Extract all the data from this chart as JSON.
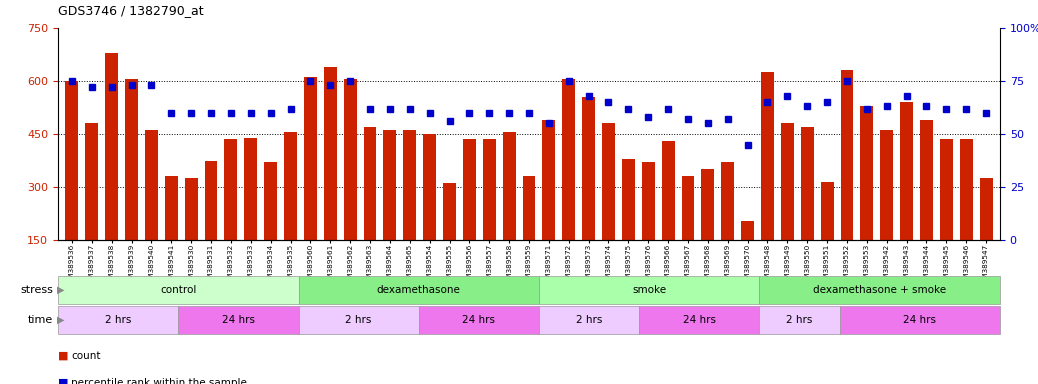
{
  "title": "GDS3746 / 1382790_at",
  "samples": [
    "GSM389536",
    "GSM389537",
    "GSM389538",
    "GSM389539",
    "GSM389540",
    "GSM389541",
    "GSM389530",
    "GSM389531",
    "GSM389532",
    "GSM389533",
    "GSM389534",
    "GSM389535",
    "GSM389560",
    "GSM389561",
    "GSM389562",
    "GSM389563",
    "GSM389564",
    "GSM389565",
    "GSM389554",
    "GSM389555",
    "GSM389556",
    "GSM389557",
    "GSM389558",
    "GSM389559",
    "GSM389571",
    "GSM389572",
    "GSM389573",
    "GSM389574",
    "GSM389575",
    "GSM389576",
    "GSM389566",
    "GSM389567",
    "GSM389568",
    "GSM389569",
    "GSM389570",
    "GSM389548",
    "GSM389549",
    "GSM389550",
    "GSM389551",
    "GSM389552",
    "GSM389553",
    "GSM389542",
    "GSM389543",
    "GSM389544",
    "GSM389545",
    "GSM389546",
    "GSM389547"
  ],
  "counts": [
    600,
    480,
    680,
    605,
    460,
    330,
    325,
    375,
    435,
    440,
    370,
    455,
    610,
    640,
    605,
    470,
    460,
    460,
    450,
    310,
    435,
    435,
    455,
    330,
    490,
    605,
    555,
    480,
    380,
    370,
    430,
    330,
    350,
    370,
    205,
    625,
    480,
    470,
    315,
    630,
    530,
    460,
    540,
    490,
    435,
    435,
    325
  ],
  "percentiles": [
    75,
    72,
    72,
    73,
    73,
    60,
    60,
    60,
    60,
    60,
    60,
    62,
    75,
    73,
    75,
    62,
    62,
    62,
    60,
    56,
    60,
    60,
    60,
    60,
    55,
    75,
    68,
    65,
    62,
    58,
    62,
    57,
    55,
    57,
    45,
    65,
    68,
    63,
    65,
    75,
    62,
    63,
    68,
    63,
    62,
    62,
    60
  ],
  "ylim_left": [
    150,
    750
  ],
  "ylim_right": [
    0,
    100
  ],
  "yticks_left": [
    150,
    300,
    450,
    600,
    750
  ],
  "yticks_right": [
    0,
    25,
    50,
    75,
    100
  ],
  "bar_color": "#cc2200",
  "dot_color": "#0000cc",
  "stress_groups": [
    {
      "label": "control",
      "start": 0,
      "end": 12,
      "color": "#ccffcc"
    },
    {
      "label": "dexamethasone",
      "start": 12,
      "end": 24,
      "color": "#88ee88"
    },
    {
      "label": "smoke",
      "start": 24,
      "end": 35,
      "color": "#aaffaa"
    },
    {
      "label": "dexamethasone + smoke",
      "start": 35,
      "end": 47,
      "color": "#88ee88"
    }
  ],
  "time_groups": [
    {
      "label": "2 hrs",
      "start": 0,
      "end": 6,
      "color": "#eeccff"
    },
    {
      "label": "24 hrs",
      "start": 6,
      "end": 12,
      "color": "#ee77ee"
    },
    {
      "label": "2 hrs",
      "start": 12,
      "end": 18,
      "color": "#eeccff"
    },
    {
      "label": "24 hrs",
      "start": 18,
      "end": 24,
      "color": "#ee77ee"
    },
    {
      "label": "2 hrs",
      "start": 24,
      "end": 29,
      "color": "#eeccff"
    },
    {
      "label": "24 hrs",
      "start": 29,
      "end": 35,
      "color": "#ee77ee"
    },
    {
      "label": "2 hrs",
      "start": 35,
      "end": 39,
      "color": "#eeccff"
    },
    {
      "label": "24 hrs",
      "start": 39,
      "end": 47,
      "color": "#ee77ee"
    }
  ],
  "background_color": "#ffffff"
}
